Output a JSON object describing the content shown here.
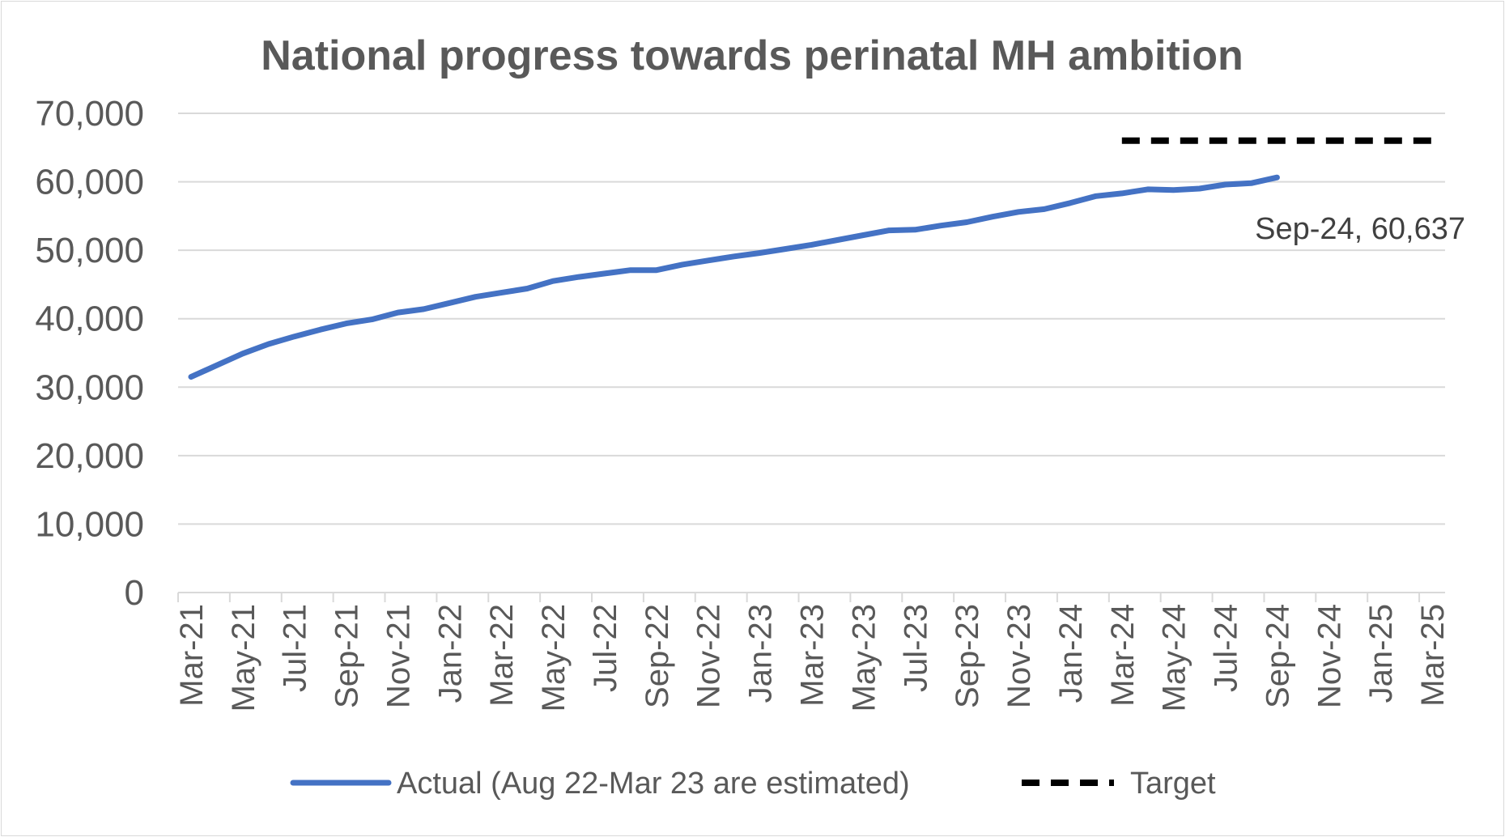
{
  "chart_data": {
    "type": "line",
    "title": "National progress towards perinatal MH ambition",
    "xlabel": "",
    "ylabel": "",
    "ylim": [
      0,
      70000
    ],
    "y_ticks": [
      0,
      10000,
      20000,
      30000,
      40000,
      50000,
      60000,
      70000
    ],
    "y_tick_labels": [
      "0",
      "10,000",
      "20,000",
      "30,000",
      "40,000",
      "50,000",
      "60,000",
      "70,000"
    ],
    "x_tick_labels": [
      "Mar-21",
      "May-21",
      "Jul-21",
      "Sep-21",
      "Nov-21",
      "Jan-22",
      "Mar-22",
      "May-22",
      "Jul-22",
      "Sep-22",
      "Nov-22",
      "Jan-23",
      "Mar-23",
      "May-23",
      "Jul-23",
      "Sep-23",
      "Nov-23",
      "Jan-24",
      "Mar-24",
      "May-24",
      "Jul-24",
      "Sep-24",
      "Nov-24",
      "Jan-25",
      "Mar-25"
    ],
    "categories": [
      "Mar-21",
      "Apr-21",
      "May-21",
      "Jun-21",
      "Jul-21",
      "Aug-21",
      "Sep-21",
      "Oct-21",
      "Nov-21",
      "Dec-21",
      "Jan-22",
      "Feb-22",
      "Mar-22",
      "Apr-22",
      "May-22",
      "Jun-22",
      "Jul-22",
      "Aug-22",
      "Sep-22",
      "Oct-22",
      "Nov-22",
      "Dec-22",
      "Jan-23",
      "Feb-23",
      "Mar-23",
      "Apr-23",
      "May-23",
      "Jun-23",
      "Jul-23",
      "Aug-23",
      "Sep-23",
      "Oct-23",
      "Nov-23",
      "Dec-23",
      "Jan-24",
      "Feb-24",
      "Mar-24",
      "Apr-24",
      "May-24",
      "Jun-24",
      "Jul-24",
      "Aug-24",
      "Sep-24",
      "Oct-24",
      "Nov-24",
      "Dec-24",
      "Jan-25",
      "Feb-25",
      "Mar-25"
    ],
    "series": [
      {
        "name": "Actual (Aug 22-Mar 23 are estimated)",
        "color": "#4472C4",
        "style": "solid",
        "values": [
          31500,
          33200,
          34900,
          36300,
          37400,
          38400,
          39300,
          39900,
          40900,
          41400,
          42300,
          43200,
          43800,
          44400,
          45500,
          46100,
          46600,
          47100,
          47100,
          47900,
          48500,
          49100,
          49600,
          50200,
          50800,
          51500,
          52200,
          52900,
          53000,
          53600,
          54100,
          54900,
          55600,
          56000,
          56900,
          57900,
          58300,
          58900,
          58800,
          59000,
          59600,
          59800,
          60637,
          null,
          null,
          null,
          null,
          null,
          null
        ]
      },
      {
        "name": "Target",
        "color": "#000000",
        "style": "dashed",
        "values": [
          null,
          null,
          null,
          null,
          null,
          null,
          null,
          null,
          null,
          null,
          null,
          null,
          null,
          null,
          null,
          null,
          null,
          null,
          null,
          null,
          null,
          null,
          null,
          null,
          null,
          null,
          null,
          null,
          null,
          null,
          null,
          null,
          null,
          null,
          null,
          null,
          66000,
          66000,
          66000,
          66000,
          66000,
          66000,
          66000,
          66000,
          66000,
          66000,
          66000,
          66000,
          66000
        ]
      }
    ],
    "annotation": {
      "text": "Sep-24, 60,637",
      "category": "Sep-24",
      "value": 60637
    },
    "legend": {
      "position": "bottom",
      "items": [
        "Actual (Aug 22-Mar 23 are estimated)",
        "Target"
      ]
    },
    "grid": true,
    "gridline_color": "#d9d9d9"
  }
}
